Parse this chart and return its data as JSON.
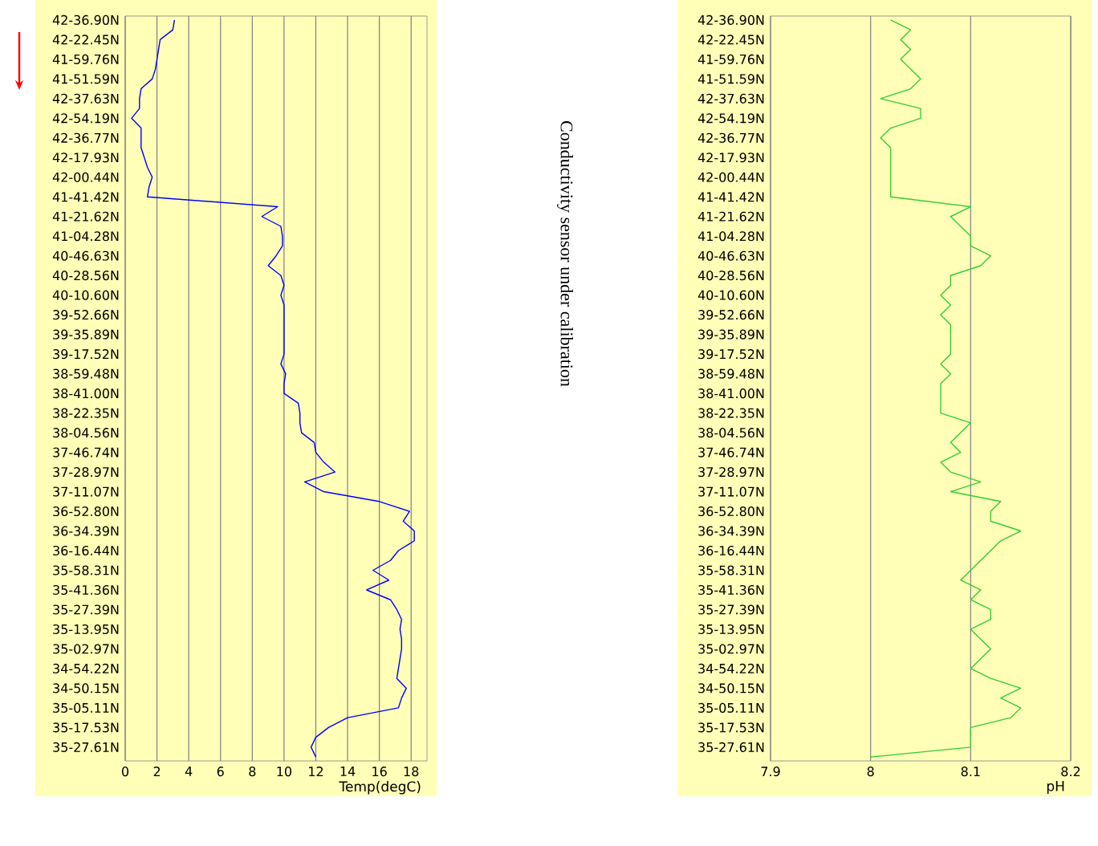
{
  "chart_data": [
    {
      "type": "line",
      "orientation": "horizontal",
      "xlabel": "Temp(degC)",
      "color": "#0000ff",
      "grid": "x",
      "xlim": [
        0,
        19
      ],
      "xticks": [
        0,
        2,
        4,
        6,
        8,
        10,
        12,
        14,
        16,
        18
      ],
      "categories": [
        "42-36.90N",
        null,
        "42-22.45N",
        null,
        "41-59.76N",
        null,
        "41-51.59N",
        null,
        "42-37.63N",
        null,
        "42-54.19N",
        null,
        "42-36.77N",
        null,
        "42-17.93N",
        null,
        "42-00.44N",
        null,
        "41-41.42N",
        null,
        "41-21.62N",
        null,
        "41-04.28N",
        null,
        "40-46.63N",
        null,
        "40-28.56N",
        null,
        "40-10.60N",
        null,
        "39-52.66N",
        null,
        "39-35.89N",
        null,
        "39-17.52N",
        null,
        "38-59.48N",
        null,
        "38-41.00N",
        null,
        "38-22.35N",
        null,
        "38-04.56N",
        null,
        "37-46.74N",
        null,
        "37-28.97N",
        null,
        "37-11.07N",
        null,
        "36-52.80N",
        null,
        "36-34.39N",
        null,
        "36-16.44N",
        null,
        "35-58.31N",
        null,
        "35-41.36N",
        null,
        "35-27.39N",
        null,
        "35-13.95N",
        null,
        "35-02.97N",
        null,
        "34-54.22N",
        null,
        "34-50.15N",
        null,
        "35-05.11N",
        null,
        "35-17.53N",
        null,
        "35-27.61N",
        null
      ],
      "values": [
        3.1,
        3.0,
        2.2,
        2.1,
        2.0,
        1.9,
        1.7,
        1.0,
        0.9,
        0.9,
        0.4,
        1.0,
        1.0,
        1.0,
        1.2,
        1.4,
        1.7,
        1.5,
        1.4,
        9.6,
        8.6,
        9.8,
        9.9,
        9.9,
        9.5,
        9.0,
        9.8,
        10.0,
        9.8,
        10.0,
        10.0,
        10.0,
        10.0,
        10.0,
        10.0,
        9.8,
        10.1,
        10.0,
        10.0,
        10.9,
        11.0,
        11.0,
        11.1,
        11.9,
        12.0,
        12.5,
        13.2,
        11.3,
        12.5,
        16.0,
        17.9,
        17.5,
        18.2,
        18.2,
        17.2,
        16.7,
        15.6,
        16.6,
        15.2,
        16.7,
        17.1,
        17.4,
        17.3,
        17.4,
        17.4,
        17.3,
        17.2,
        17.1,
        17.7,
        17.4,
        17.2,
        14.0,
        12.8,
        12.0,
        11.7,
        12.0
      ]
    },
    {
      "type": "line",
      "orientation": "horizontal",
      "xlabel": "pH",
      "color": "#33cc33",
      "grid": "x",
      "xlim": [
        7.9,
        8.2
      ],
      "xticks": [
        7.9,
        8,
        8.1,
        8.2
      ],
      "annotations": [
        "Conductivity sensor under calibration"
      ],
      "categories": [
        "42-36.90N",
        null,
        "42-22.45N",
        null,
        "41-59.76N",
        null,
        "41-51.59N",
        null,
        "42-37.63N",
        null,
        "42-54.19N",
        null,
        "42-36.77N",
        null,
        "42-17.93N",
        null,
        "42-00.44N",
        null,
        "41-41.42N",
        null,
        "41-21.62N",
        null,
        "41-04.28N",
        null,
        "40-46.63N",
        null,
        "40-28.56N",
        null,
        "40-10.60N",
        null,
        "39-52.66N",
        null,
        "39-35.89N",
        null,
        "39-17.52N",
        null,
        "38-59.48N",
        null,
        "38-41.00N",
        null,
        "38-22.35N",
        null,
        "38-04.56N",
        null,
        "37-46.74N",
        null,
        "37-28.97N",
        null,
        "37-11.07N",
        null,
        "36-52.80N",
        null,
        "36-34.39N",
        null,
        "36-16.44N",
        null,
        "35-58.31N",
        null,
        "35-41.36N",
        null,
        "35-27.39N",
        null,
        "35-13.95N",
        null,
        "35-02.97N",
        null,
        "34-54.22N",
        null,
        "34-50.15N",
        null,
        "35-05.11N",
        null,
        "35-17.53N",
        null,
        "35-27.61N",
        null
      ],
      "values": [
        8.02,
        8.04,
        8.03,
        8.04,
        8.03,
        8.04,
        8.05,
        8.04,
        8.01,
        8.05,
        8.05,
        8.02,
        8.01,
        8.02,
        8.02,
        8.02,
        8.02,
        8.02,
        8.02,
        8.1,
        8.08,
        8.09,
        8.1,
        8.1,
        8.12,
        8.11,
        8.08,
        8.08,
        8.07,
        8.08,
        8.07,
        8.08,
        8.08,
        8.08,
        8.08,
        8.07,
        8.08,
        8.07,
        8.07,
        8.07,
        8.07,
        8.1,
        8.09,
        8.08,
        8.09,
        8.07,
        8.08,
        8.11,
        8.08,
        8.13,
        8.12,
        8.12,
        8.15,
        8.13,
        8.12,
        8.11,
        8.1,
        8.09,
        8.11,
        8.1,
        8.12,
        8.12,
        8.1,
        8.11,
        8.12,
        8.11,
        8.1,
        8.12,
        8.15,
        8.13,
        8.15,
        8.14,
        8.1,
        8.1,
        8.1,
        8.0
      ]
    }
  ]
}
